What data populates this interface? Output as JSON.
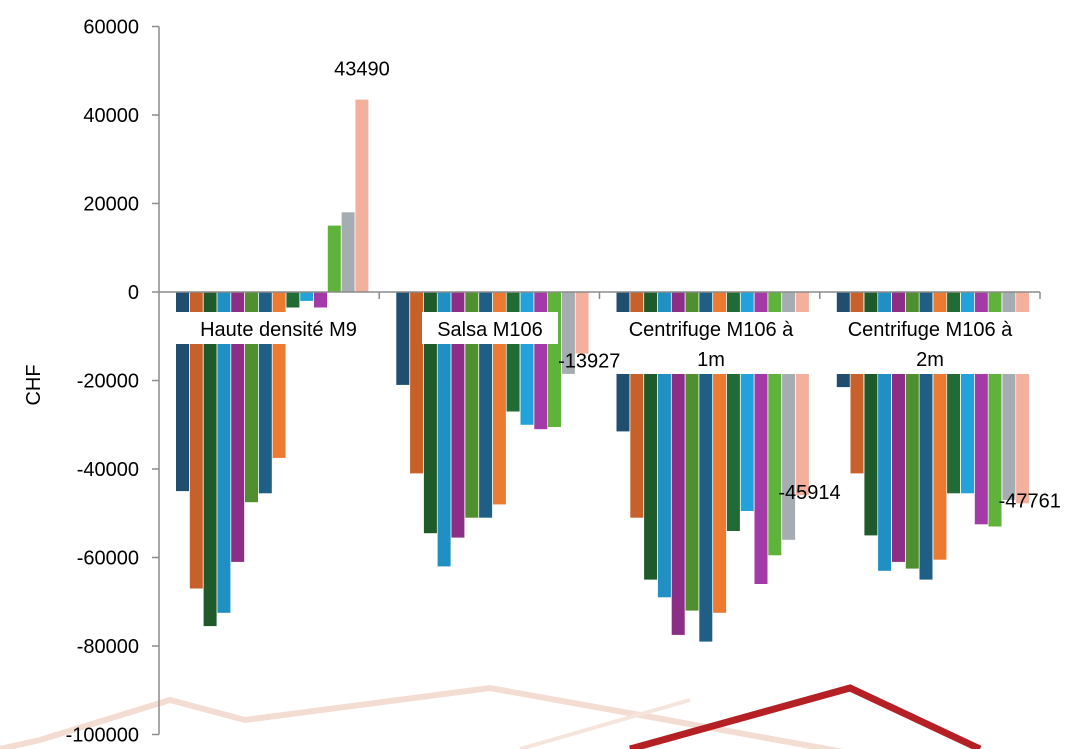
{
  "chart_data": {
    "type": "bar",
    "ylabel": "CHF",
    "ylim": [
      -100000,
      60000
    ],
    "yticks": [
      60000,
      40000,
      20000,
      0,
      -20000,
      -40000,
      -60000,
      -80000,
      -100000
    ],
    "categories": [
      "Haute densité M9",
      "Salsa  M106",
      "Centrifuge M106 à 1m",
      "Centrifuge M106 à 2m"
    ],
    "series_colors": [
      "#1f4e6e",
      "#c8602a",
      "#1e5a2a",
      "#1f8fc4",
      "#8c2e86",
      "#4f8f2f",
      "#1f5f86",
      "#ec7a30",
      "#216b34",
      "#22a2db",
      "#a33aa8",
      "#5fb23a",
      "#a5acb2",
      "#f2b09d"
    ],
    "values": [
      [
        -45000,
        -67000,
        -75500,
        -72500,
        -61000,
        -47500,
        -45500,
        -37500,
        -3500,
        -2000,
        -3500,
        15000,
        18000,
        43490
      ],
      [
        -21000,
        -41000,
        -54500,
        -62000,
        -55500,
        -51000,
        -51000,
        -48000,
        -27000,
        -30000,
        -31000,
        -30500,
        -18500,
        -13927
      ],
      [
        -31500,
        -51000,
        -65000,
        -69000,
        -77500,
        -72000,
        -79000,
        -72500,
        -54000,
        -49500,
        -66000,
        -59500,
        -56000,
        -45914
      ],
      [
        -21500,
        -41000,
        -55000,
        -63000,
        -61000,
        -62500,
        -65000,
        -60500,
        -45500,
        -45500,
        -52500,
        -53000,
        -47000,
        -47761
      ]
    ],
    "data_labels": [
      {
        "text": "43490",
        "category": 0,
        "series": 13
      },
      {
        "text": "-13927",
        "category": 1,
        "series": 13
      },
      {
        "text": "-45914",
        "category": 2,
        "series": 13
      },
      {
        "text": "-47761",
        "category": 3,
        "series": 13
      }
    ],
    "legend": "none",
    "grid": false
  }
}
